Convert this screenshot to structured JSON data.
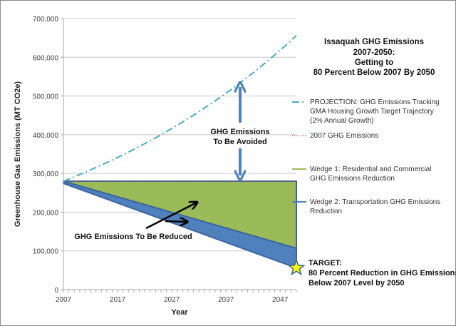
{
  "chart_data": {
    "type": "area",
    "title": [
      "Issaquah  GHG Emissions",
      "2007-2050:",
      "Getting to",
      "80 Percent Below 2007 By 2050"
    ],
    "xlabel": "Year",
    "ylabel": "Greenhouse Gas Emissions (MT CO2e)",
    "xlim": [
      2007,
      2050
    ],
    "ylim": [
      0,
      700000
    ],
    "x_ticks": [
      2007,
      2017,
      2027,
      2037,
      2047
    ],
    "y_ticks": [
      0,
      100000,
      200000,
      300000,
      400000,
      500000,
      600000,
      700000
    ],
    "y_tick_labels": [
      "0",
      "100,000",
      "200,000",
      "300,000",
      "400,000",
      "500,000",
      "600,000",
      "700,000"
    ],
    "x_tick_labels": [
      "2007",
      "2017",
      "2027",
      "2037",
      "2047"
    ],
    "grid": "horizontal",
    "legend_position": "right",
    "series": [
      {
        "name": "PROJECTION: GHG Emissions Tracking GMA Housing Growth Target Trajectory (2% Annual Growth)",
        "legend_lines": [
          "PROJECTION: GHG Emissions Tracking",
          "GMA Housing Growth Target Trajectory",
          "(2% Annual Growth)"
        ],
        "style": "dash-dot",
        "color": "#4bacc6",
        "start_value": 280000,
        "annual_growth": 0.02,
        "x": [
          2007,
          2050
        ],
        "values_endpoints": [
          280000,
          655000
        ]
      },
      {
        "name": "2007 GHG Emissions",
        "legend_lines": [
          "2007 GHG Emissions"
        ],
        "style": "dotted",
        "color": "#c0504d",
        "x": [
          2007,
          2050
        ],
        "values": [
          280000,
          280000
        ]
      },
      {
        "name": "Wedge 1: Residential and Commercial GHG Emissions Reduction",
        "legend_lines": [
          "Wedge 1: Residential and Commercial",
          "GHG Emissions Reduction"
        ],
        "style": "area",
        "color": "#9bbb59",
        "x": [
          2007,
          2050
        ],
        "upper": [
          280000,
          280000
        ],
        "lower": [
          280000,
          107000
        ]
      },
      {
        "name": "Wedge 2: Transportation GHG Emissions Reduction",
        "legend_lines": [
          "Wedge 2: Transportation GHG Emissions",
          "Reduction"
        ],
        "style": "area",
        "color": "#4f81bd",
        "x": [
          2007,
          2050
        ],
        "upper": [
          280000,
          107000
        ],
        "lower": [
          280000,
          56000
        ]
      }
    ],
    "annotations": {
      "avoided": [
        "GHG Emissions",
        "To Be Avoided"
      ],
      "reduced": "GHG Emissions To Be Reduced",
      "target": [
        "TARGET:",
        "80 Percent Reduction in GHG Emissions",
        "Below 2007 Level by 2050"
      ],
      "target_value": 56000,
      "target_year": 2050
    }
  }
}
